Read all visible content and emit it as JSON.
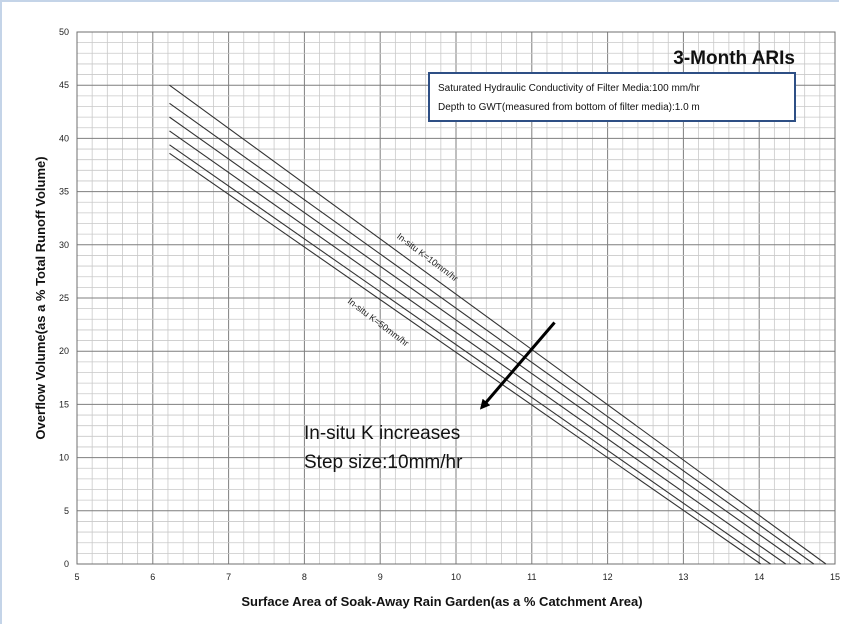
{
  "chart_data": {
    "type": "line",
    "title": "3-Month ARIs",
    "xlabel": "Surface Area of Soak-Away Rain Garden(as a % Catchment Area)",
    "ylabel": "Overflow Volume(as a % Total Runoff Volume)",
    "xlim": [
      5,
      15
    ],
    "ylim": [
      0,
      50
    ],
    "xticks": [
      "5",
      "6",
      "7",
      "8",
      "9",
      "10",
      "11",
      "12",
      "13",
      "14",
      "15"
    ],
    "yticks": [
      "0",
      "5",
      "10",
      "15",
      "20",
      "25",
      "30",
      "35",
      "40",
      "45",
      "50"
    ],
    "grid": true,
    "legend_box": {
      "line1": "Saturated Hydraulic Conductivity of Filter Media:100 mm/hr",
      "line2": "Depth to GWT(measured  from  bottom of filter media):1.0 m"
    },
    "series": [
      {
        "x": [
          6.22,
          14.88
        ],
        "y": [
          45.0,
          0.0
        ]
      },
      {
        "x": [
          6.22,
          14.72
        ],
        "y": [
          43.3,
          0.0
        ]
      },
      {
        "x": [
          6.22,
          14.55
        ],
        "y": [
          42.0,
          0.0
        ]
      },
      {
        "x": [
          6.22,
          14.35
        ],
        "y": [
          40.7,
          0.0
        ]
      },
      {
        "x": [
          6.22,
          14.15
        ],
        "y": [
          39.4,
          0.0
        ]
      },
      {
        "x": [
          6.22,
          14.02
        ],
        "y": [
          38.6,
          0.0
        ]
      }
    ],
    "line_labels": [
      {
        "text": "In-situ K=10mm/hr",
        "x": 9.6,
        "y": 28.6,
        "angle": 37
      },
      {
        "text": "In-situ K=50mm/hr",
        "x": 8.95,
        "y": 22.5,
        "angle": 37
      }
    ],
    "annotation": {
      "line1": "In-situ K increases",
      "line2": "Step size:10mm/hr",
      "arrow_from": [
        11.3,
        22.7
      ],
      "arrow_to": [
        10.35,
        14.8
      ]
    }
  }
}
